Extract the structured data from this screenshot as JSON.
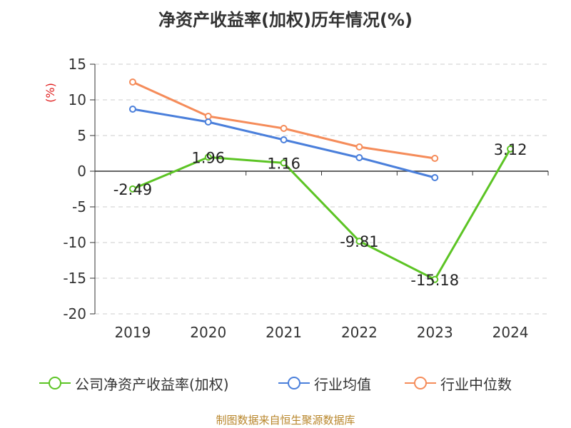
{
  "title": "净资产收益率(加权)历年情况(%)",
  "source": "制图数据来自恒生聚源数据库",
  "chart_data": {
    "type": "line",
    "title": "净资产收益率(加权)历年情况(%)",
    "ylabel": "(%)",
    "categories": [
      "2019",
      "2020",
      "2021",
      "2022",
      "2023",
      "2024"
    ],
    "ylim": [
      -20,
      15
    ],
    "yticks": [
      15,
      10,
      5,
      0,
      -5,
      -10,
      -15,
      -20
    ],
    "grid": true,
    "legend_position": "bottom",
    "series": [
      {
        "name": "公司净资产收益率(加权)",
        "color": "#5cc424",
        "values": [
          -2.49,
          1.96,
          1.16,
          -9.81,
          -15.18,
          3.12
        ],
        "labels": [
          "-2.49",
          "1.96",
          "1.16",
          "-9.81",
          "-15.18",
          "3.12"
        ]
      },
      {
        "name": "行业均值",
        "color": "#4a7fdb",
        "values": [
          8.7,
          6.9,
          4.4,
          1.9,
          -0.9,
          null
        ]
      },
      {
        "name": "行业中位数",
        "color": "#f58c5a",
        "values": [
          12.5,
          7.7,
          6.0,
          3.4,
          1.8,
          null
        ]
      }
    ]
  }
}
